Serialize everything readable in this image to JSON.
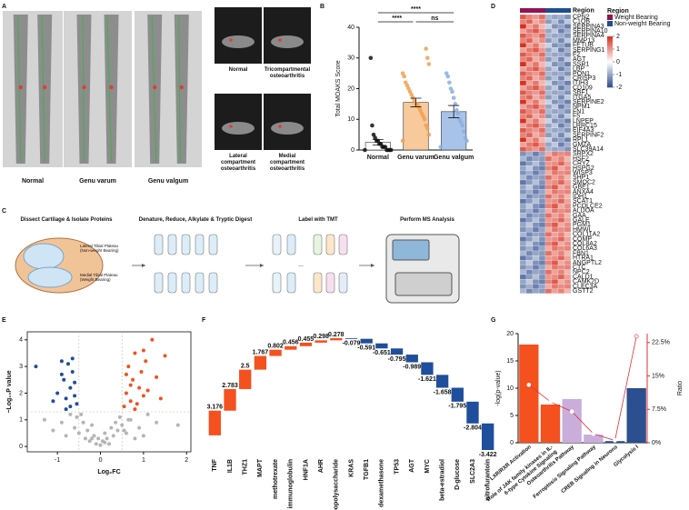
{
  "panel_a": {
    "letter": "A",
    "xray_labels": [
      "Normal",
      "Genu varum",
      "Genu valgum"
    ],
    "mri_labels": [
      "Normal",
      "Tricompartmental osteoarthritis",
      "Lateral compartment osteoarthritis",
      "Medial compartment osteoarthritis"
    ]
  },
  "panel_c": {
    "letter": "C",
    "steps": [
      "Dissect Cartilage & Isolate Proteins",
      "Denature, Reduce, Alkylate & Tryptic Digest",
      "Label with TMT",
      "Perform MS Analysis"
    ],
    "tibia_labels": [
      "Lateral Tibial Plateau (Non-weight Bearing)",
      "Medial Tibial Plateau (Weight Bearing)"
    ],
    "ellipsis": "..."
  },
  "chart_data": [
    {
      "label": "B",
      "type": "bar",
      "ylabel": "Total MOAKS Score",
      "categories": [
        "Normal",
        "Genu varum",
        "Genu valgum"
      ],
      "values": [
        2.5,
        15.5,
        12.5
      ],
      "errors": [
        0.9,
        1.4,
        2.0
      ],
      "colors": [
        "#ffffff",
        "#f7c99b",
        "#a9c3e8"
      ],
      "point_colors": [
        "#111111",
        "#f0a050",
        "#8aaede"
      ],
      "points": [
        [
          0,
          0,
          0,
          0,
          0,
          1,
          1,
          1,
          2,
          2,
          3,
          3,
          4,
          5,
          8,
          30
        ],
        [
          3,
          5,
          7,
          8,
          10,
          11,
          12,
          13,
          14,
          15,
          15,
          16,
          17,
          18,
          19,
          20,
          21,
          22,
          24,
          25,
          28,
          30,
          33
        ],
        [
          1,
          3,
          4,
          6,
          8,
          9,
          10,
          12,
          13,
          15,
          17,
          19,
          20,
          22,
          24,
          25
        ]
      ],
      "ylim": [
        0,
        40
      ],
      "yticks": [
        0,
        10,
        20,
        30,
        40
      ],
      "annotations": [
        "****",
        "****",
        "ns"
      ]
    },
    {
      "label": "D",
      "type": "heatmap",
      "rows": [
        "CPN2",
        "C1QB",
        "SERPINA3",
        "SERPINA10",
        "SERPINA4",
        "MMP13",
        "FETUB",
        "SERPING1",
        "F2",
        "AGT",
        "SSR1",
        "LBP",
        "PON1",
        "CRISP3",
        "ITIH3",
        "CD109",
        "SBF1",
        "ITGA5",
        "SERPINE2",
        "NPM1",
        "FN1",
        "F5",
        "LNPEP",
        "LRRC15",
        "EIF4A3",
        "SERPINF2",
        "RPL1",
        "GMZA",
        "SLC39A14",
        "SRPX2",
        "HSF2",
        "CRYZ",
        "HSPG2",
        "WISP3",
        "SHP1",
        "SMOC2",
        "GBE1",
        "ANXA4",
        "IDH1",
        "SCAT1",
        "PCOLCE2",
        "ALDOA",
        "GAA",
        "GALE",
        "PGM1",
        "HMWL",
        "COL11A2",
        "COMP",
        "COL8A2",
        "COL6A3",
        "FBN1",
        "HTRA1",
        "ANGPTL2",
        "CTC",
        "NPC2",
        "CALD1",
        "CAMK2D",
        "CLEC3A",
        "GSTT2"
      ],
      "values": [
        [
          1.6,
          1.2,
          1.0,
          1.4,
          -0.8,
          -1.0,
          -0.9,
          -1.2
        ],
        [
          1.2,
          1.5,
          0.8,
          1.1,
          -1.1,
          -0.7,
          -1.3,
          -0.6
        ],
        [
          2.0,
          0.9,
          1.3,
          0.7,
          -0.5,
          -1.2,
          -1.0,
          -1.4
        ],
        [
          0.9,
          1.3,
          1.6,
          1.0,
          -1.0,
          -0.6,
          -1.4,
          -0.9
        ],
        [
          1.6,
          1.2,
          1.0,
          1.4,
          -0.8,
          -1.0,
          -0.9,
          -1.2
        ],
        [
          1.2,
          1.5,
          0.8,
          1.1,
          -1.1,
          -0.7,
          -1.3,
          -0.6
        ],
        [
          2.0,
          0.9,
          1.3,
          0.7,
          -0.5,
          -1.2,
          -1.0,
          -1.4
        ],
        [
          0.9,
          1.3,
          1.6,
          1.0,
          -1.0,
          -0.6,
          -1.4,
          -0.9
        ],
        [
          1.6,
          1.2,
          1.0,
          1.4,
          -0.8,
          -1.0,
          -0.9,
          -1.2
        ],
        [
          1.2,
          1.5,
          0.8,
          1.1,
          -1.1,
          -0.7,
          -1.3,
          -0.6
        ],
        [
          2.0,
          0.9,
          1.3,
          0.7,
          -0.5,
          -1.2,
          -1.0,
          -1.4
        ],
        [
          0.9,
          1.3,
          1.6,
          1.0,
          -1.0,
          -0.6,
          -1.4,
          -0.9
        ],
        [
          1.6,
          1.2,
          1.0,
          1.4,
          -0.8,
          -1.0,
          -0.9,
          -1.2
        ],
        [
          1.2,
          1.5,
          0.8,
          1.1,
          -1.1,
          -0.7,
          -1.3,
          -0.6
        ],
        [
          2.0,
          0.9,
          1.3,
          0.7,
          -0.5,
          -1.2,
          -1.0,
          -1.4
        ],
        [
          0.9,
          1.3,
          1.6,
          1.0,
          -1.0,
          -0.6,
          -1.4,
          -0.9
        ],
        [
          1.6,
          1.2,
          1.0,
          1.4,
          -0.8,
          -1.0,
          -0.9,
          -1.2
        ],
        [
          1.2,
          1.5,
          0.8,
          1.1,
          -1.1,
          -0.7,
          -1.3,
          -0.6
        ],
        [
          2.0,
          0.9,
          1.3,
          0.7,
          -0.5,
          -1.2,
          -1.0,
          -1.4
        ],
        [
          0.9,
          1.3,
          1.6,
          1.0,
          -1.0,
          -0.6,
          -1.4,
          -0.9
        ],
        [
          1.6,
          1.2,
          1.0,
          1.4,
          -0.8,
          -1.0,
          -0.9,
          -1.2
        ],
        [
          1.2,
          1.5,
          0.8,
          1.1,
          -1.1,
          -0.7,
          -1.3,
          -0.6
        ],
        [
          2.0,
          0.9,
          1.3,
          0.7,
          -0.5,
          -1.2,
          -1.0,
          -1.4
        ],
        [
          0.9,
          1.3,
          1.6,
          1.0,
          -1.0,
          -0.6,
          -1.4,
          -0.9
        ],
        [
          1.6,
          1.2,
          1.0,
          1.4,
          -0.8,
          -1.0,
          -0.9,
          -1.2
        ],
        [
          1.2,
          1.5,
          0.8,
          1.1,
          -1.1,
          -0.7,
          -1.3,
          -0.6
        ],
        [
          2.0,
          0.9,
          1.3,
          0.7,
          -0.5,
          -1.2,
          -1.0,
          -1.4
        ],
        [
          0.9,
          1.3,
          1.6,
          1.0,
          -1.0,
          -0.6,
          -1.4,
          -0.9
        ],
        [
          1.6,
          1.2,
          1.0,
          1.4,
          -0.8,
          -1.0,
          -0.9,
          -1.2
        ],
        [
          -1.2,
          -0.9,
          -1.4,
          -1.0,
          0.8,
          1.3,
          1.1,
          1.2
        ],
        [
          -0.8,
          -1.3,
          -1.0,
          -1.1,
          1.4,
          0.9,
          1.2,
          0.7
        ],
        [
          -1.5,
          -1.1,
          -0.7,
          -1.2,
          1.0,
          1.1,
          1.5,
          0.9
        ],
        [
          -1.0,
          -0.6,
          -1.2,
          -1.4,
          1.2,
          1.6,
          0.8,
          1.1
        ],
        [
          -1.2,
          -0.9,
          -1.4,
          -1.0,
          0.8,
          1.3,
          1.1,
          1.2
        ],
        [
          -0.8,
          -1.3,
          -1.0,
          -1.1,
          1.4,
          0.9,
          1.2,
          0.7
        ],
        [
          -1.5,
          -1.1,
          -0.7,
          -1.2,
          1.0,
          1.1,
          1.5,
          0.9
        ],
        [
          -1.0,
          -0.6,
          -1.2,
          -1.4,
          1.2,
          1.6,
          0.8,
          1.1
        ],
        [
          -1.2,
          -0.9,
          -1.4,
          -1.0,
          0.8,
          1.3,
          1.1,
          1.2
        ],
        [
          -0.8,
          -1.3,
          -1.0,
          -1.1,
          1.4,
          0.9,
          1.2,
          0.7
        ],
        [
          -1.5,
          -1.1,
          -0.7,
          -1.2,
          1.0,
          1.1,
          1.5,
          0.9
        ],
        [
          -1.0,
          -0.6,
          -1.2,
          -1.4,
          1.2,
          1.6,
          0.8,
          1.1
        ],
        [
          -1.2,
          -0.9,
          -1.4,
          -1.0,
          0.8,
          1.3,
          1.1,
          1.2
        ],
        [
          -0.8,
          -1.3,
          -1.0,
          -1.1,
          1.4,
          0.9,
          1.2,
          0.7
        ],
        [
          -1.5,
          -1.1,
          -0.7,
          -1.2,
          1.0,
          1.1,
          1.5,
          0.9
        ],
        [
          -1.0,
          -0.6,
          -1.2,
          -1.4,
          1.2,
          1.6,
          0.8,
          1.1
        ],
        [
          -1.2,
          -0.9,
          -1.4,
          -1.0,
          0.8,
          1.3,
          1.1,
          1.2
        ],
        [
          -0.8,
          -1.3,
          -1.0,
          -1.1,
          1.4,
          0.9,
          1.2,
          0.7
        ],
        [
          -1.5,
          -1.1,
          -0.7,
          -1.2,
          1.0,
          1.1,
          1.5,
          0.9
        ],
        [
          -1.0,
          -0.6,
          -1.2,
          -1.4,
          1.2,
          1.6,
          0.8,
          1.1
        ],
        [
          -1.2,
          -0.9,
          -1.4,
          -1.0,
          0.8,
          1.3,
          1.1,
          1.2
        ],
        [
          -0.8,
          -1.3,
          -1.0,
          -1.1,
          1.4,
          0.9,
          1.2,
          0.7
        ],
        [
          -1.5,
          -1.1,
          -0.7,
          -1.2,
          1.0,
          1.1,
          1.5,
          0.9
        ],
        [
          -1.0,
          -0.6,
          -1.2,
          -1.4,
          1.2,
          1.6,
          0.8,
          1.1
        ],
        [
          -1.2,
          -0.9,
          -1.4,
          -1.0,
          0.8,
          1.3,
          1.1,
          1.2
        ],
        [
          -0.8,
          -1.3,
          -1.0,
          -1.1,
          1.4,
          0.9,
          1.2,
          0.7
        ],
        [
          -1.5,
          -1.1,
          -0.7,
          -1.2,
          1.0,
          1.1,
          1.5,
          0.9
        ],
        [
          -1.0,
          -0.6,
          -1.2,
          -1.4,
          1.2,
          1.6,
          0.8,
          1.1
        ],
        [
          -1.2,
          -0.9,
          -1.4,
          -1.0,
          0.8,
          1.3,
          1.1,
          1.2
        ],
        [
          -0.8,
          -1.3,
          -1.0,
          -1.1,
          1.4,
          0.9,
          1.2,
          0.7
        ]
      ],
      "zlim": [
        -2,
        2
      ],
      "zticks": [
        2,
        1,
        0,
        -1,
        -2
      ],
      "colors": [
        "#2b4a8c",
        "#ffffff",
        "#d7301f"
      ],
      "annotation_label": "Region",
      "legend_title": "Region",
      "groups": [
        {
          "name": "Weight Bearing",
          "color": "#8e1550"
        },
        {
          "name": "Non-weight Bearing",
          "color": "#1f4e8c"
        }
      ],
      "column_groups": [
        0,
        0,
        0,
        0,
        1,
        1,
        1,
        1
      ]
    },
    {
      "label": "E",
      "type": "scatter",
      "xlabel": "Log₂FC",
      "ylabel": "−Log₁₀P value",
      "series": [
        {
          "color": "#b5b5b5",
          "x": [
            -1.3,
            -1.1,
            -0.9,
            -0.8,
            -0.7,
            -0.6,
            -0.5,
            -0.4,
            -0.35,
            -0.3,
            -0.25,
            -0.2,
            -0.15,
            -0.1,
            -0.05,
            0,
            0.05,
            0.1,
            0.15,
            0.2,
            0.25,
            0.3,
            0.35,
            0.4,
            0.45,
            0.5,
            0.6,
            0.7,
            0.8,
            0.9,
            1.0,
            1.1,
            1.3,
            -0.45,
            -0.55,
            0.55,
            0.65,
            -0.2,
            0.1,
            1.8
          ],
          "values": [
            1.0,
            0.6,
            0.9,
            0.4,
            1.2,
            0.7,
            0.5,
            0.9,
            0.3,
            0.6,
            0.2,
            0.8,
            0.4,
            0.1,
            0.3,
            0.05,
            0.2,
            0.5,
            0.3,
            0.1,
            0.7,
            0.4,
            0.9,
            0.6,
            1.1,
            0.8,
            0.5,
            1.0,
            0.3,
            0.7,
            0.4,
            1.2,
            0.9,
            1.2,
            1.1,
            0.6,
            1.0,
            0.3,
            0.15,
            0.8
          ]
        },
        {
          "color": "#1f4e9c",
          "x": [
            -1.5,
            -1.0,
            -0.9,
            -0.85,
            -0.8,
            -0.75,
            -0.7,
            -0.7,
            -0.65,
            -0.6,
            -0.6,
            -0.55,
            -0.8,
            -0.9,
            -1.1,
            -0.65
          ],
          "values": [
            3.0,
            2.0,
            3.2,
            2.5,
            1.8,
            3.1,
            2.2,
            1.5,
            2.8,
            1.9,
            2.4,
            1.6,
            1.4,
            2.7,
            1.7,
            3.3
          ]
        },
        {
          "color": "#f4511e",
          "x": [
            0.55,
            0.6,
            0.65,
            0.7,
            0.75,
            0.8,
            0.85,
            0.9,
            0.95,
            1.0,
            1.05,
            1.1,
            1.2,
            1.3,
            1.4,
            1.5,
            0.6,
            0.8,
            1.0,
            0.7
          ],
          "values": [
            1.5,
            2.0,
            3.0,
            1.7,
            2.5,
            3.5,
            1.6,
            2.2,
            2.8,
            1.9,
            3.2,
            2.1,
            4.0,
            2.6,
            1.8,
            3.4,
            2.7,
            1.4,
            3.6,
            2.3
          ]
        }
      ],
      "xlim": [
        -1.7,
        2.1
      ],
      "xticks": [
        -1,
        0,
        1,
        2
      ],
      "ylim": [
        -0.2,
        4.3
      ],
      "yticks": [
        0,
        1,
        2,
        3,
        4
      ],
      "thresholds": {
        "x": [
          -0.5,
          0.5
        ],
        "y": 1.3
      }
    },
    {
      "label": "F",
      "type": "waterfall",
      "categories": [
        "TNF",
        "IL1B",
        "THZ1",
        "MAPT",
        "methotrexate",
        "immunoglobulin",
        "HNF1A",
        "AHR",
        "lipopolysaccharide",
        "KRAS",
        "TGFB1",
        "dexamethasone",
        "TP53",
        "AGT",
        "MYC",
        "beta-estradiol",
        "D-glucose",
        "SLC2A3",
        "nitrofurantoin"
      ],
      "values": [
        3.176,
        2.783,
        2.5,
        1.767,
        0.802,
        0.456,
        0.455,
        0.298,
        0.278,
        -0.079,
        -0.591,
        -0.651,
        -0.795,
        -0.989,
        -1.621,
        -1.658,
        -1.795,
        -2.804,
        -3.422
      ],
      "colors": {
        "positive": "#f4511e",
        "negative": "#1f4e9c"
      }
    },
    {
      "label": "G",
      "type": "bar-line",
      "ylabel": "-log(p-value)",
      "y2label": "Ratio",
      "categories": [
        "LXR/RXR Activation",
        "Role of JAK family kinases in IL-6-type Cytokine Signaling",
        "Osteoarthritis Pathway",
        "Ferroptosis Signaling Pathway",
        "CREB Signaling in Neurons",
        "Glycolysis I"
      ],
      "values": [
        18,
        7,
        8,
        1.5,
        0.3,
        10
      ],
      "colors": [
        "#f4511e",
        "#f4511e",
        "#c9aedb",
        "#c9aedb",
        "#1f4e9c",
        "#2b4f8f"
      ],
      "line": {
        "color": "#e0303a",
        "axis": "y2",
        "values": [
          13,
          9.2,
          7,
          2,
          0.5,
          23.9
        ]
      },
      "ylim": [
        0,
        20
      ],
      "yticks": [
        0,
        5,
        10,
        15,
        20
      ],
      "y2lim": [
        0,
        24.5
      ],
      "y2ticks": [
        {
          "value": 0,
          "label": "0%"
        },
        {
          "value": 7.5,
          "label": "7.5%"
        },
        {
          "value": 15,
          "label": "15%"
        },
        {
          "value": 22.5,
          "label": "22.5%"
        }
      ]
    }
  ]
}
